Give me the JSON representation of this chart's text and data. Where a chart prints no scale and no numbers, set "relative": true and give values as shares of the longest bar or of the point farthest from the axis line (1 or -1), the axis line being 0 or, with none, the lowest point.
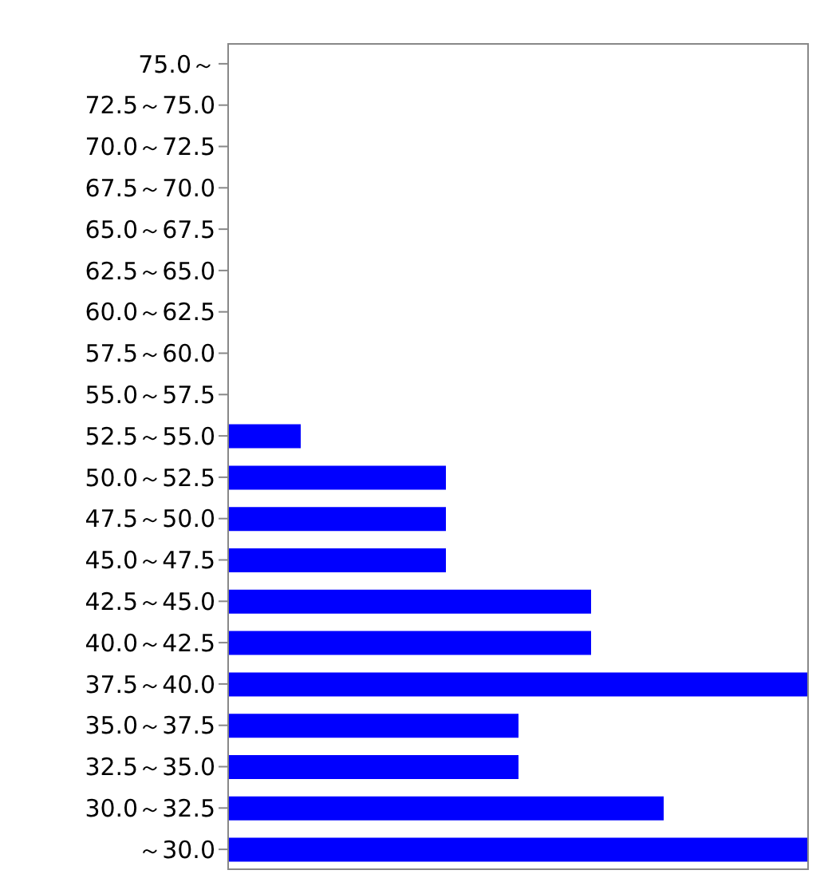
{
  "chart_data": {
    "type": "bar",
    "orientation": "horizontal",
    "relative": true,
    "color": "#0000ff",
    "categories": [
      "75.0～",
      "72.5～75.0",
      "70.0～72.5",
      "67.5～70.0",
      "65.0～67.5",
      "62.5～65.0",
      "60.0～62.5",
      "57.5～60.0",
      "55.0～57.5",
      "52.5～55.0",
      "50.0～52.5",
      "47.5～50.0",
      "45.0～47.5",
      "42.5～45.0",
      "40.0～42.5",
      "37.5～40.0",
      "35.0～37.5",
      "32.5～35.0",
      "30.0～32.5",
      "～30.0"
    ],
    "values": [
      0,
      0,
      0,
      0,
      0,
      0,
      0,
      0,
      0,
      0.125,
      0.375,
      0.375,
      0.375,
      0.625,
      0.625,
      1,
      0.5,
      0.5,
      0.75,
      1
    ],
    "grid": false
  }
}
